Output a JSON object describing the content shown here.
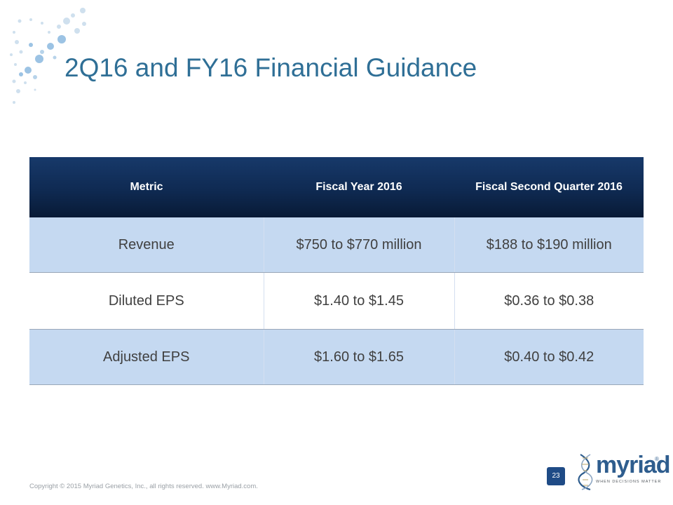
{
  "slide": {
    "title": "2Q16 and FY16 Financial Guidance",
    "page_number": "23",
    "copyright": "Copyright © 2015 Myriad Genetics, Inc., all rights reserved.  www.Myriad.com."
  },
  "logo": {
    "wordmark": "myriad",
    "registered": "®",
    "tagline": "WHEN DECISIONS MATTER"
  },
  "table": {
    "headers": [
      "Metric",
      "Fiscal Year 2016",
      "Fiscal Second Quarter 2016"
    ],
    "rows": [
      [
        "Revenue",
        "$750 to $770 million",
        "$188 to $190 million"
      ],
      [
        "Diluted EPS",
        "$1.40 to $1.45",
        "$0.36 to $0.38"
      ],
      [
        "Adjusted EPS",
        "$1.60 to $1.65",
        "$0.40 to $0.42"
      ]
    ]
  },
  "colors": {
    "title": "#2f6f96",
    "header_bg": "#0f2a52",
    "row_shade": "#c5d9f1",
    "page_badge": "#1f4b86"
  }
}
